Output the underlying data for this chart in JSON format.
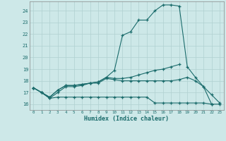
{
  "xlabel": "Humidex (Indice chaleur)",
  "background_color": "#cde8e8",
  "line_color": "#1a6b6b",
  "grid_color": "#b0d0d0",
  "x_values": [
    0,
    1,
    2,
    3,
    4,
    5,
    6,
    7,
    8,
    9,
    10,
    11,
    12,
    13,
    14,
    15,
    16,
    17,
    18,
    19,
    20,
    21,
    22,
    23
  ],
  "series": [
    [
      17.4,
      17.0,
      16.5,
      16.6,
      16.6,
      16.6,
      16.6,
      16.6,
      16.6,
      16.6,
      16.6,
      16.6,
      16.6,
      16.6,
      16.6,
      16.1,
      16.1,
      16.1,
      16.1,
      16.1,
      16.1,
      16.1,
      16.0,
      16.0
    ],
    [
      17.4,
      17.0,
      16.5,
      17.0,
      17.5,
      17.5,
      17.6,
      17.8,
      17.8,
      18.2,
      18.1,
      18.0,
      18.0,
      18.0,
      18.0,
      18.0,
      18.0,
      18.0,
      18.1,
      18.3,
      18.0,
      17.5,
      16.0,
      null
    ],
    [
      17.4,
      17.0,
      16.6,
      17.2,
      17.6,
      17.6,
      17.7,
      17.8,
      17.9,
      18.3,
      18.2,
      18.2,
      18.3,
      18.5,
      18.7,
      18.9,
      19.0,
      19.2,
      19.4,
      null,
      null,
      null,
      null,
      null
    ],
    [
      17.4,
      17.0,
      16.6,
      17.2,
      17.6,
      17.6,
      17.7,
      17.8,
      17.9,
      18.3,
      18.9,
      21.9,
      22.2,
      23.2,
      23.2,
      24.0,
      24.5,
      24.5,
      24.4,
      19.2,
      18.3,
      17.5,
      16.8,
      16.1
    ]
  ],
  "ylim": [
    15.5,
    24.8
  ],
  "xlim": [
    -0.5,
    23.5
  ],
  "yticks": [
    16,
    17,
    18,
    19,
    20,
    21,
    22,
    23,
    24
  ],
  "xticks": [
    0,
    1,
    2,
    3,
    4,
    5,
    6,
    7,
    8,
    9,
    10,
    11,
    12,
    13,
    14,
    15,
    16,
    17,
    18,
    19,
    20,
    21,
    22,
    23
  ]
}
